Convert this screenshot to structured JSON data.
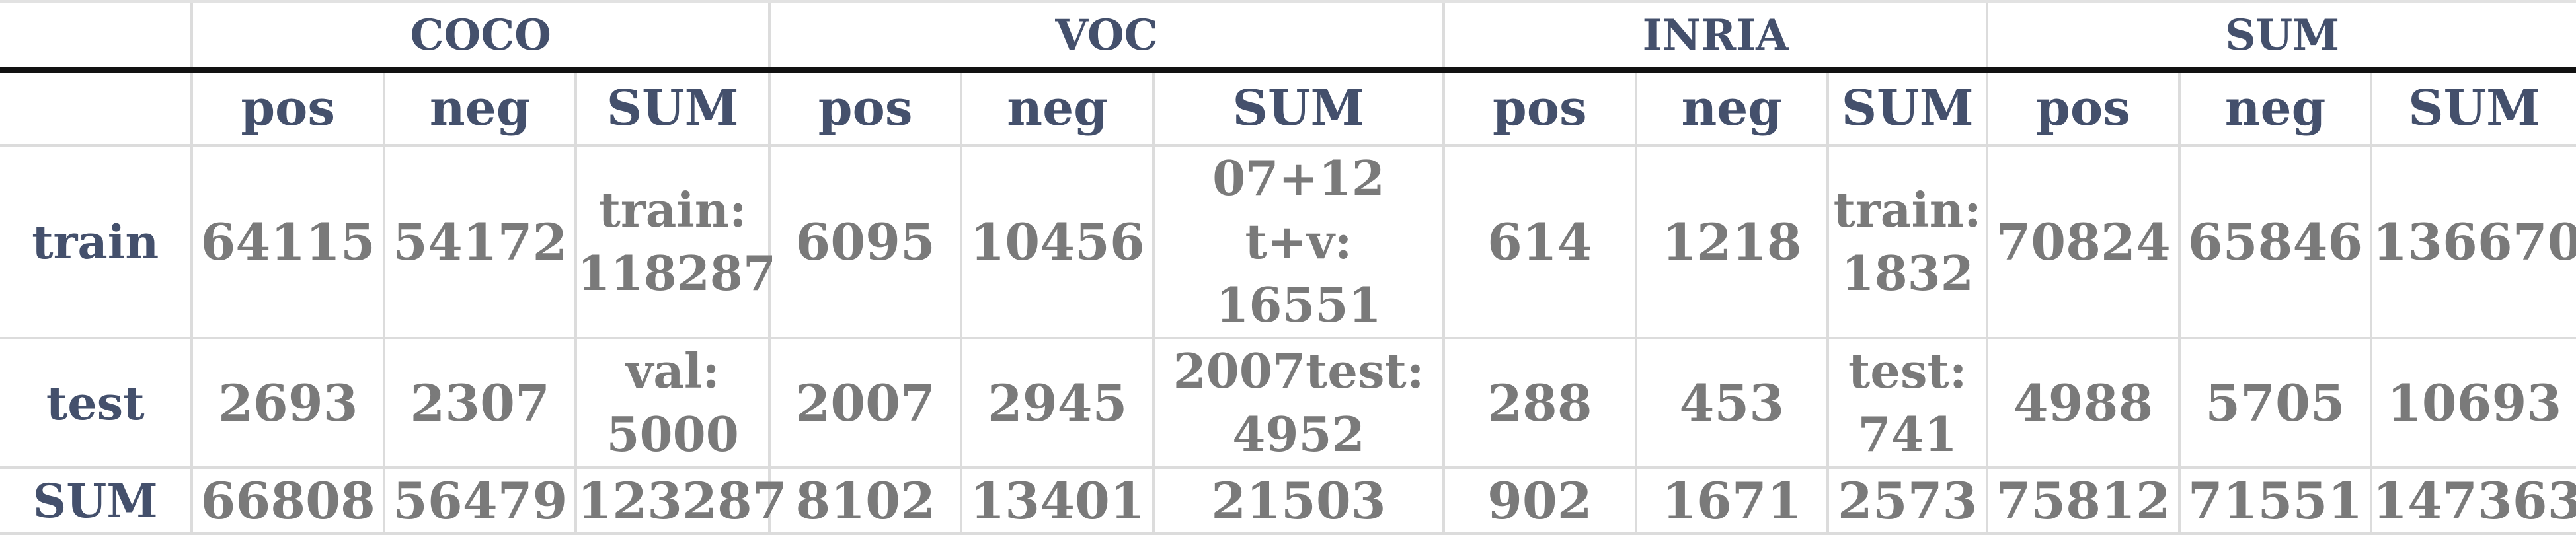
{
  "groups": [
    "COCO",
    "VOC",
    "INRIA",
    "SUM"
  ],
  "subheaders": [
    "pos",
    "neg",
    "SUM"
  ],
  "rows": [
    {
      "label": "train",
      "coco": {
        "pos": "64115",
        "neg": "54172",
        "sum_line1": "train:",
        "sum_line2": "118287"
      },
      "voc": {
        "pos": "6095",
        "neg": "10456",
        "sum_line1": "07+12 t+v:",
        "sum_line2": "16551"
      },
      "inria": {
        "pos": "614",
        "neg": "1218",
        "sum_line1": "train:",
        "sum_line2": "1832"
      },
      "total": {
        "pos": "70824",
        "neg": "65846",
        "sum": "136670"
      }
    },
    {
      "label": "test",
      "coco": {
        "pos": "2693",
        "neg": "2307",
        "sum_line1": "val:",
        "sum_line2": "5000"
      },
      "voc": {
        "pos": "2007",
        "neg": "2945",
        "sum_line1": "2007test:",
        "sum_line2": "4952"
      },
      "inria": {
        "pos": "288",
        "neg": "453",
        "sum_line1": "test:",
        "sum_line2": "741"
      },
      "total": {
        "pos": "4988",
        "neg": "5705",
        "sum": "10693"
      }
    },
    {
      "label": "SUM",
      "coco": {
        "pos": "66808",
        "neg": "56479",
        "sum": "123287"
      },
      "voc": {
        "pos": "8102",
        "neg": "13401",
        "sum": "21503"
      },
      "inria": {
        "pos": "902",
        "neg": "1671",
        "sum": "2573"
      },
      "total": {
        "pos": "75812",
        "neg": "71551",
        "sum": "147363"
      }
    }
  ],
  "colors": {
    "header_text": "#44506c",
    "value_text": "#7a7a7a",
    "grid": "#dcdcdc",
    "header_rule": "#111111"
  }
}
